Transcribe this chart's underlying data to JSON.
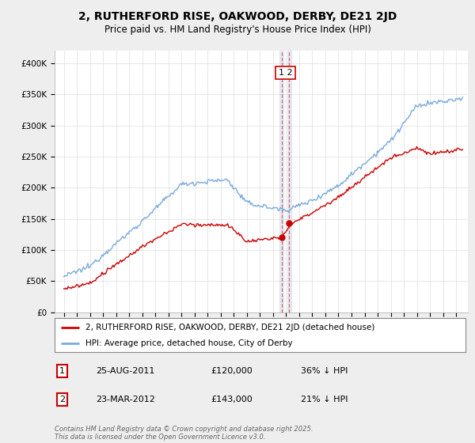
{
  "title": "2, RUTHERFORD RISE, OAKWOOD, DERBY, DE21 2JD",
  "subtitle": "Price paid vs. HM Land Registry's House Price Index (HPI)",
  "red_label": "2, RUTHERFORD RISE, OAKWOOD, DERBY, DE21 2JD (detached house)",
  "blue_label": "HPI: Average price, detached house, City of Derby",
  "annotation1": {
    "num": "1",
    "date": "25-AUG-2011",
    "price": "£120,000",
    "pct": "36% ↓ HPI"
  },
  "annotation2": {
    "num": "2",
    "date": "23-MAR-2012",
    "price": "£143,000",
    "pct": "21% ↓ HPI"
  },
  "footer": "Contains HM Land Registry data © Crown copyright and database right 2025.\nThis data is licensed under the Open Government Licence v3.0.",
  "pt1_x": 2011.65,
  "pt1_y": 120000,
  "pt2_x": 2012.23,
  "pt2_y": 143000,
  "ylim": [
    0,
    420000
  ],
  "xlim_left": 1994.3,
  "xlim_right": 2025.9,
  "yticks": [
    0,
    50000,
    100000,
    150000,
    200000,
    250000,
    300000,
    350000,
    400000
  ],
  "ytick_labels": [
    "£0",
    "£50K",
    "£100K",
    "£150K",
    "£200K",
    "£250K",
    "£300K",
    "£350K",
    "£400K"
  ],
  "background_color": "#eeeeee",
  "plot_bg": "#ffffff",
  "red_color": "#cc0000",
  "blue_color": "#7aaadd",
  "grid_color": "#dddddd",
  "title_fontsize": 10,
  "subtitle_fontsize": 8.5,
  "axis_fontsize": 7.5,
  "legend_fontsize": 7.5,
  "footer_fontsize": 6
}
